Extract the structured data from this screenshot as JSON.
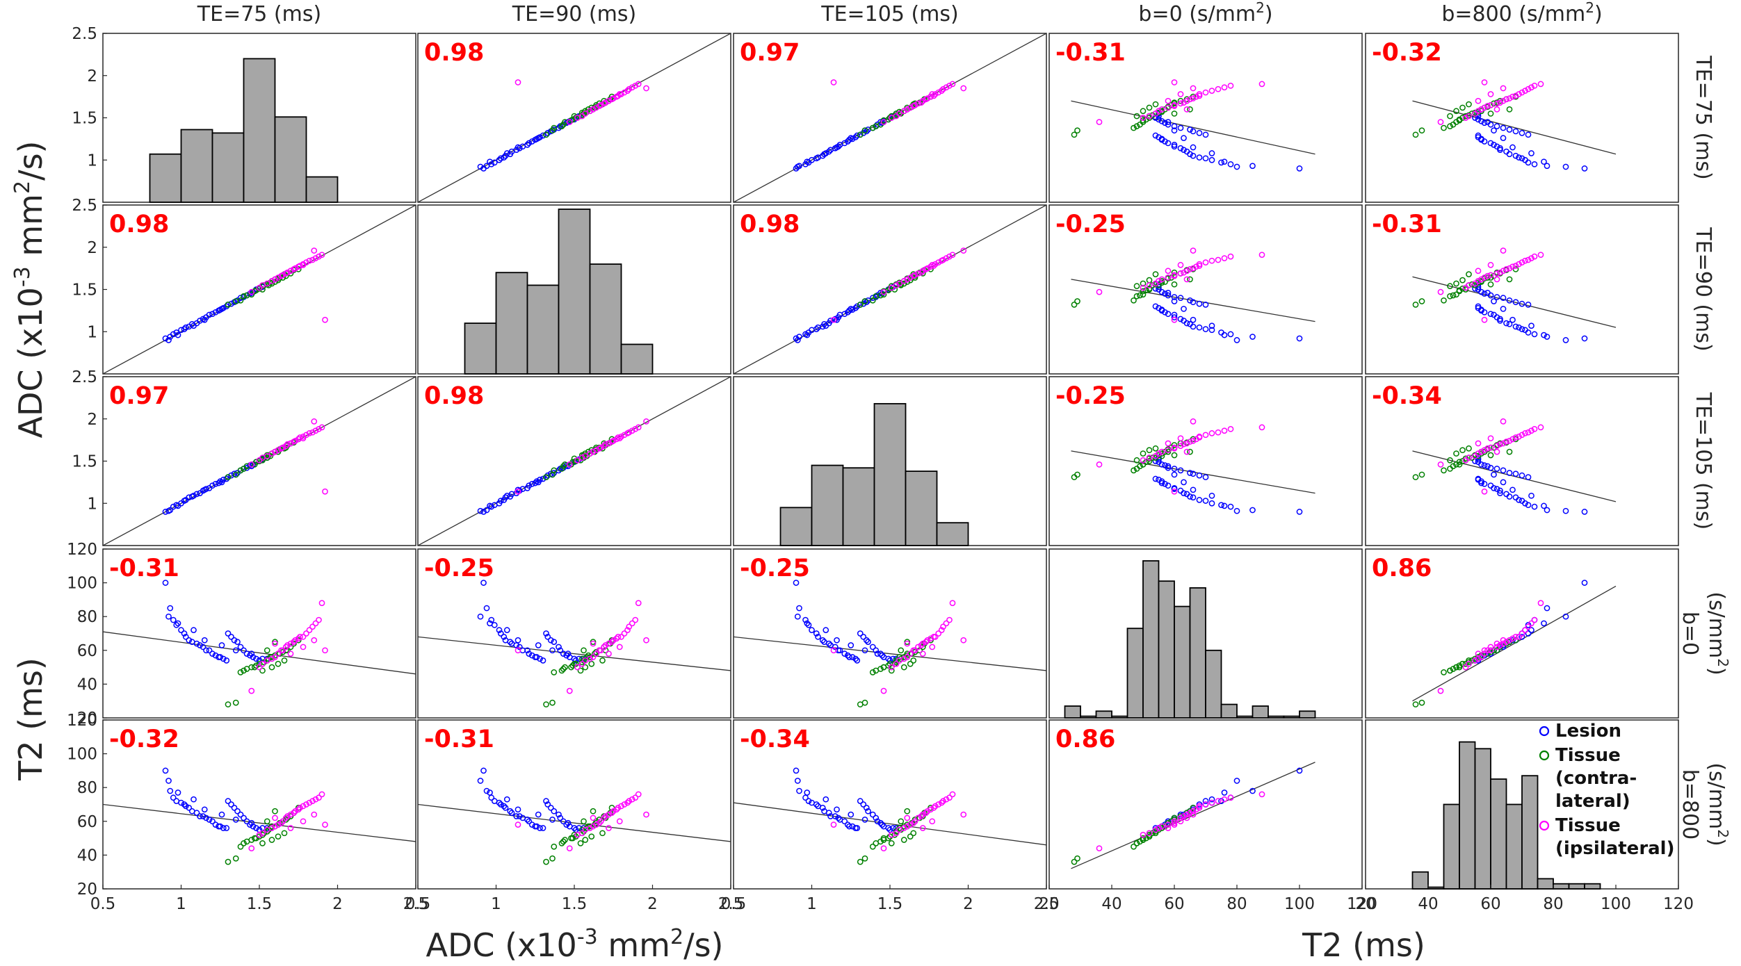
{
  "column_headers": [
    {
      "text": "TE=75 (ms)"
    },
    {
      "text": "TE=90 (ms)"
    },
    {
      "text": "TE=105 (ms)"
    },
    {
      "text": "b=0 (s/mm",
      "sup": "2",
      "tail": ")"
    },
    {
      "text": "b=800 (s/mm",
      "sup": "2",
      "tail": ")"
    }
  ],
  "row_headers": [
    {
      "lines": [
        "TE=75 (ms)"
      ]
    },
    {
      "lines": [
        "TE=90 (ms)"
      ]
    },
    {
      "lines": [
        "TE=105 (ms)"
      ]
    },
    {
      "lines": [
        "b=0",
        "(s/mm"
      ],
      "sup": "2",
      "tail": ")"
    },
    {
      "lines": [
        "b=800",
        "(s/mm"
      ],
      "sup": "2",
      "tail": ")"
    }
  ],
  "axis_labels": {
    "y_adc": {
      "text": "ADC (x10",
      "sup": "-3",
      "mid": " mm",
      "sup2": "2",
      "tail": "/s)"
    },
    "y_t2": {
      "text": "T2 (ms)"
    },
    "x_adc": {
      "text": "ADC (x10",
      "sup": "-3",
      "mid": " mm",
      "sup2": "2",
      "tail": "/s)"
    },
    "x_t2": {
      "text": "T2 (ms)"
    }
  },
  "legend": {
    "entries": [
      {
        "lines": [
          "Lesion"
        ],
        "color": "#0000ff"
      },
      {
        "lines": [
          "Tissue",
          "(contra-",
          "lateral)"
        ],
        "color": "#008000"
      },
      {
        "lines": [
          "Tissue",
          "(ipsilateral)"
        ],
        "color": "#ff00ff"
      }
    ]
  },
  "chart_data": {
    "type": "scatter-matrix",
    "variables": [
      "ADC TE=75",
      "ADC TE=90",
      "ADC TE=105",
      "T2 b=0",
      "T2 b=800"
    ],
    "axes": {
      "adc": {
        "range": [
          0.5,
          2.5
        ],
        "xticks": [
          "0.5",
          "1",
          "1.5",
          "2",
          "2.5"
        ],
        "yticks": [
          "1",
          "1.5",
          "2",
          "2.5"
        ]
      },
      "t2": {
        "range": [
          20,
          120
        ],
        "xticks": [
          "20",
          "40",
          "60",
          "80",
          "100",
          "120"
        ],
        "yticks": [
          "20",
          "40",
          "60",
          "80",
          "100",
          "120"
        ]
      }
    },
    "correlations": [
      [
        null,
        "0.98",
        "0.97",
        "-0.31",
        "-0.32"
      ],
      [
        "0.98",
        null,
        "0.98",
        "-0.25",
        "-0.31"
      ],
      [
        "0.97",
        "0.98",
        null,
        "-0.25",
        "-0.34"
      ],
      [
        "-0.31",
        "-0.25",
        "-0.25",
        null,
        "0.86"
      ],
      [
        "-0.32",
        "-0.31",
        "-0.34",
        "0.86",
        null
      ]
    ],
    "histograms": [
      {
        "edges": [
          0.8,
          1.0,
          1.2,
          1.4,
          1.6,
          1.8,
          2.0
        ],
        "heights": [
          1.07,
          1.36,
          1.32,
          2.2,
          1.51,
          0.8
        ],
        "baseline": 0.5
      },
      {
        "edges": [
          0.8,
          1.0,
          1.2,
          1.4,
          1.6,
          1.8,
          2.0
        ],
        "heights": [
          1.1,
          1.7,
          1.55,
          2.45,
          1.8,
          0.85
        ],
        "baseline": 0.5
      },
      {
        "edges": [
          0.8,
          1.0,
          1.2,
          1.4,
          1.6,
          1.8,
          2.0
        ],
        "heights": [
          0.95,
          1.45,
          1.42,
          2.18,
          1.38,
          0.77
        ],
        "baseline": 0.5
      },
      {
        "edges": [
          25,
          30,
          35,
          40,
          45,
          50,
          55,
          60,
          65,
          70,
          75,
          80,
          85,
          90,
          95,
          100,
          105
        ],
        "heights": [
          27,
          21,
          24,
          21,
          73,
          113,
          101,
          86,
          97,
          60,
          28,
          21,
          27,
          21,
          21,
          24
        ],
        "baseline": 20
      },
      {
        "edges": [
          35,
          40,
          45,
          50,
          55,
          60,
          65,
          70,
          75,
          80,
          85,
          90,
          95
        ],
        "heights": [
          30,
          21,
          70,
          107,
          103,
          85,
          70,
          87,
          26,
          23,
          23,
          23
        ],
        "baseline": 20
      }
    ],
    "fit_lines": {
      "0_1": [
        [
          0.5,
          0.5
        ],
        [
          2.5,
          2.5
        ]
      ],
      "0_2": [
        [
          0.5,
          0.5
        ],
        [
          2.5,
          2.5
        ]
      ],
      "1_0": [
        [
          0.5,
          0.5
        ],
        [
          2.5,
          2.5
        ]
      ],
      "1_2": [
        [
          0.5,
          0.5
        ],
        [
          2.5,
          2.5
        ]
      ],
      "2_0": [
        [
          0.5,
          0.5
        ],
        [
          2.5,
          2.5
        ]
      ],
      "2_1": [
        [
          0.5,
          0.5
        ],
        [
          2.5,
          2.5
        ]
      ],
      "0_3": [
        [
          27,
          1.7
        ],
        [
          105,
          1.07
        ]
      ],
      "0_4": [
        [
          35,
          1.7
        ],
        [
          100,
          1.07
        ]
      ],
      "1_3": [
        [
          27,
          1.62
        ],
        [
          105,
          1.12
        ]
      ],
      "1_4": [
        [
          35,
          1.65
        ],
        [
          100,
          1.05
        ]
      ],
      "2_3": [
        [
          27,
          1.62
        ],
        [
          105,
          1.12
        ]
      ],
      "2_4": [
        [
          35,
          1.62
        ],
        [
          100,
          1.02
        ]
      ],
      "3_0": [
        [
          0.5,
          71
        ],
        [
          2.5,
          46
        ]
      ],
      "3_1": [
        [
          0.5,
          68
        ],
        [
          2.5,
          48
        ]
      ],
      "3_2": [
        [
          0.5,
          68
        ],
        [
          2.5,
          48
        ]
      ],
      "4_0": [
        [
          0.5,
          70
        ],
        [
          2.5,
          48
        ]
      ],
      "4_1": [
        [
          0.5,
          70
        ],
        [
          2.5,
          48
        ]
      ],
      "4_2": [
        [
          0.5,
          71
        ],
        [
          2.5,
          46
        ]
      ],
      "3_4": [
        [
          35,
          30
        ],
        [
          100,
          98
        ]
      ],
      "4_3": [
        [
          27,
          32
        ],
        [
          105,
          95
        ]
      ]
    },
    "groups": [
      {
        "name": "Lesion",
        "color": "#0000ff",
        "adc75": [
          0.9,
          0.93,
          0.95,
          0.97,
          1.0,
          1.02,
          1.03,
          1.05,
          1.07,
          1.1,
          1.12,
          1.14,
          1.16,
          1.18,
          1.2,
          1.22,
          1.24,
          1.25,
          1.27,
          1.29,
          1.3,
          1.32,
          1.34,
          1.36,
          1.38,
          1.4,
          1.42,
          1.44,
          1.46,
          1.48,
          1.5,
          1.52,
          0.92,
          0.98,
          1.08,
          1.15,
          1.26,
          1.35,
          1.45,
          1.55
        ],
        "adc90": [
          0.92,
          0.94,
          0.97,
          0.99,
          1.02,
          1.03,
          1.05,
          1.06,
          1.09,
          1.1,
          1.13,
          1.15,
          1.17,
          1.2,
          1.21,
          1.23,
          1.25,
          1.26,
          1.28,
          1.3,
          1.32,
          1.33,
          1.35,
          1.37,
          1.4,
          1.41,
          1.43,
          1.45,
          1.47,
          1.5,
          1.51,
          1.53,
          0.9,
          0.96,
          1.07,
          1.14,
          1.27,
          1.36,
          1.46,
          1.56
        ],
        "adc105": [
          0.9,
          0.92,
          0.96,
          0.98,
          1.0,
          1.03,
          1.04,
          1.07,
          1.08,
          1.11,
          1.12,
          1.15,
          1.17,
          1.18,
          1.21,
          1.23,
          1.24,
          1.26,
          1.28,
          1.29,
          1.31,
          1.33,
          1.35,
          1.36,
          1.39,
          1.41,
          1.42,
          1.45,
          1.46,
          1.49,
          1.5,
          1.52,
          0.91,
          0.97,
          1.09,
          1.16,
          1.25,
          1.34,
          1.44,
          1.54
        ],
        "t2b0": [
          100,
          85,
          78,
          75,
          72,
          70,
          68,
          66,
          65,
          64,
          63,
          62,
          60,
          60,
          58,
          57,
          56,
          56,
          55,
          54,
          70,
          68,
          66,
          65,
          62,
          60,
          58,
          57,
          56,
          55,
          54,
          55,
          80,
          76,
          72,
          66,
          63,
          60,
          58,
          55
        ],
        "t2b800": [
          90,
          78,
          74,
          72,
          71,
          70,
          69,
          68,
          66,
          65,
          63,
          63,
          62,
          61,
          60,
          58,
          57,
          57,
          56,
          56,
          72,
          70,
          68,
          66,
          64,
          62,
          60,
          58,
          57,
          56,
          55,
          56,
          84,
          77,
          73,
          67,
          64,
          61,
          59,
          56
        ]
      },
      {
        "name": "Tissue (contralateral)",
        "color": "#008000",
        "adc75": [
          1.3,
          1.35,
          1.38,
          1.4,
          1.42,
          1.45,
          1.47,
          1.48,
          1.5,
          1.52,
          1.53,
          1.55,
          1.56,
          1.57,
          1.58,
          1.6,
          1.62,
          1.63,
          1.65,
          1.67,
          1.68,
          1.7,
          1.72,
          1.75,
          1.52,
          1.58,
          1.62,
          1.66,
          1.55,
          1.6
        ],
        "adc90": [
          1.32,
          1.36,
          1.37,
          1.42,
          1.43,
          1.44,
          1.48,
          1.49,
          1.51,
          1.5,
          1.55,
          1.56,
          1.55,
          1.58,
          1.6,
          1.59,
          1.63,
          1.64,
          1.64,
          1.66,
          1.7,
          1.69,
          1.73,
          1.74,
          1.54,
          1.57,
          1.61,
          1.68,
          1.56,
          1.62
        ],
        "adc105": [
          1.31,
          1.34,
          1.39,
          1.41,
          1.44,
          1.46,
          1.46,
          1.49,
          1.5,
          1.53,
          1.54,
          1.54,
          1.57,
          1.56,
          1.59,
          1.61,
          1.61,
          1.64,
          1.66,
          1.66,
          1.69,
          1.71,
          1.72,
          1.76,
          1.51,
          1.59,
          1.63,
          1.65,
          1.57,
          1.61
        ],
        "t2b0": [
          28,
          29,
          47,
          48,
          49,
          50,
          50,
          51,
          52,
          52,
          53,
          54,
          55,
          56,
          56,
          57,
          58,
          58,
          59,
          60,
          60,
          62,
          64,
          66,
          48,
          50,
          52,
          54,
          60,
          65
        ],
        "t2b800": [
          36,
          38,
          45,
          47,
          48,
          49,
          50,
          50,
          51,
          52,
          53,
          54,
          55,
          56,
          57,
          57,
          58,
          59,
          60,
          61,
          62,
          63,
          65,
          68,
          47,
          49,
          51,
          53,
          60,
          66
        ]
      },
      {
        "name": "Tissue (ipsilateral)",
        "color": "#ff00ff",
        "adc75": [
          1.45,
          1.5,
          1.52,
          1.55,
          1.58,
          1.6,
          1.62,
          1.64,
          1.65,
          1.67,
          1.68,
          1.7,
          1.72,
          1.73,
          1.75,
          1.76,
          1.78,
          1.8,
          1.82,
          1.84,
          1.86,
          1.88,
          1.9,
          1.92,
          1.6,
          1.7,
          1.78,
          1.85
        ],
        "adc90": [
          1.47,
          1.52,
          1.55,
          1.57,
          1.6,
          1.62,
          1.64,
          1.66,
          1.67,
          1.69,
          1.7,
          1.72,
          1.74,
          1.75,
          1.77,
          1.78,
          1.8,
          1.82,
          1.84,
          1.85,
          1.87,
          1.89,
          1.91,
          1.14,
          1.62,
          1.72,
          1.79,
          1.96
        ],
        "adc105": [
          1.46,
          1.51,
          1.54,
          1.56,
          1.59,
          1.61,
          1.63,
          1.65,
          1.66,
          1.68,
          1.7,
          1.71,
          1.73,
          1.74,
          1.76,
          1.78,
          1.79,
          1.81,
          1.83,
          1.84,
          1.86,
          1.88,
          1.9,
          1.14,
          1.61,
          1.71,
          1.77,
          1.97
        ],
        "t2b0": [
          36,
          50,
          52,
          54,
          55,
          56,
          58,
          60,
          60,
          62,
          63,
          64,
          65,
          66,
          67,
          68,
          68,
          70,
          72,
          74,
          76,
          78,
          88,
          60,
          64,
          58,
          62,
          66
        ],
        "t2b800": [
          44,
          52,
          53,
          55,
          56,
          57,
          58,
          59,
          60,
          62,
          63,
          64,
          65,
          66,
          67,
          68,
          69,
          70,
          71,
          72,
          73,
          74,
          76,
          58,
          62,
          56,
          60,
          64
        ]
      }
    ]
  }
}
